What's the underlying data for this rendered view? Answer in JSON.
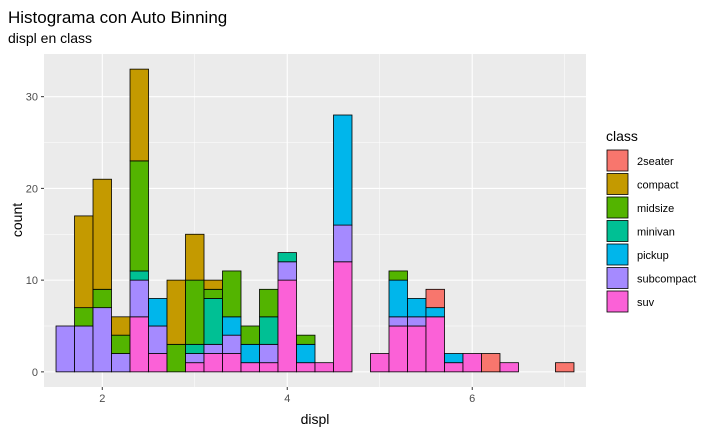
{
  "chart_data": {
    "type": "bar",
    "stacked": true,
    "title": "Histograma con Auto Binning",
    "subtitle": "displ en class",
    "xlabel": "displ",
    "ylabel": "count",
    "xlim": [
      1.37,
      7.23
    ],
    "ylim": [
      -1.65,
      34.65
    ],
    "x_ticks": [
      2,
      4,
      6
    ],
    "y_ticks": [
      0,
      10,
      20,
      30
    ],
    "grid": true,
    "legend_title": "class",
    "legend_position": "right",
    "bins": [
      1.6,
      1.8,
      2.0,
      2.2,
      2.4,
      2.6,
      2.8,
      3.0,
      3.2,
      3.4,
      3.6,
      3.8,
      4.0,
      4.2,
      4.4,
      4.6,
      4.8,
      5.0,
      5.2,
      5.4,
      5.6,
      5.8,
      6.0,
      6.2,
      6.4,
      6.6,
      6.8,
      7.0
    ],
    "bin_width": 0.2,
    "series": [
      {
        "name": "2seater",
        "color": "#F8766D",
        "values": [
          0,
          0,
          0,
          0,
          0,
          0,
          0,
          0,
          0,
          0,
          0,
          0,
          0,
          0,
          0,
          0,
          0,
          0,
          0,
          0,
          2,
          0,
          0,
          2,
          0,
          0,
          0,
          1
        ]
      },
      {
        "name": "compact",
        "color": "#C49A00",
        "values": [
          0,
          10,
          12,
          2,
          10,
          0,
          7,
          5,
          1,
          0,
          0,
          0,
          0,
          0,
          0,
          0,
          0,
          0,
          0,
          0,
          0,
          0,
          0,
          0,
          0,
          0,
          0,
          0
        ]
      },
      {
        "name": "midsize",
        "color": "#53B400",
        "values": [
          0,
          2,
          2,
          2,
          12,
          0,
          3,
          7,
          1,
          5,
          2,
          3,
          0,
          1,
          0,
          0,
          0,
          0,
          1,
          0,
          0,
          0,
          0,
          0,
          0,
          0,
          0,
          0
        ]
      },
      {
        "name": "minivan",
        "color": "#00C094",
        "values": [
          0,
          0,
          0,
          0,
          1,
          0,
          0,
          1,
          5,
          0,
          0,
          3,
          1,
          0,
          0,
          0,
          0,
          0,
          0,
          0,
          0,
          0,
          0,
          0,
          0,
          0,
          0,
          0
        ]
      },
      {
        "name": "pickup",
        "color": "#00B6EB",
        "values": [
          0,
          0,
          0,
          0,
          0,
          3,
          0,
          0,
          0,
          2,
          2,
          0,
          0,
          2,
          0,
          12,
          0,
          0,
          4,
          2,
          1,
          1,
          0,
          0,
          0,
          0,
          0,
          0
        ]
      },
      {
        "name": "subcompact",
        "color": "#A58AFF",
        "values": [
          5,
          5,
          7,
          2,
          4,
          3,
          0,
          1,
          1,
          2,
          0,
          2,
          2,
          0,
          0,
          4,
          0,
          0,
          1,
          1,
          0,
          0,
          0,
          0,
          0,
          0,
          0,
          0
        ]
      },
      {
        "name": "suv",
        "color": "#FB61D7",
        "values": [
          0,
          0,
          0,
          0,
          6,
          2,
          0,
          1,
          2,
          2,
          1,
          1,
          10,
          1,
          1,
          12,
          0,
          2,
          5,
          5,
          6,
          1,
          2,
          0,
          1,
          0,
          0,
          0
        ]
      }
    ]
  }
}
